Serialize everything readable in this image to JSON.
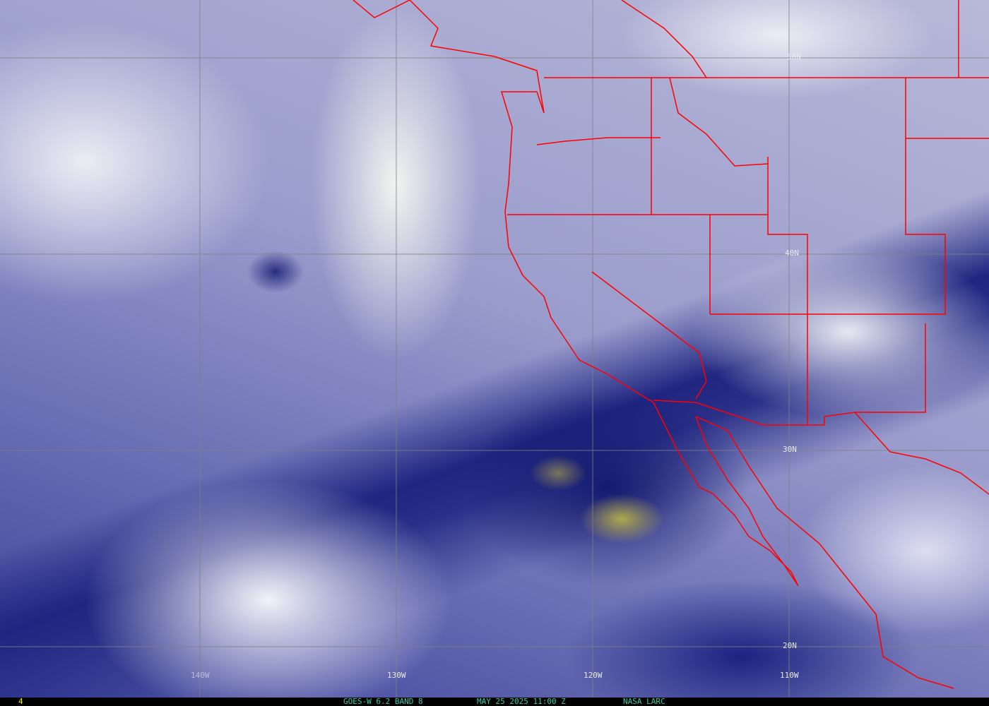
{
  "map": {
    "latitude_labels": [
      "50N",
      "40N",
      "30N",
      "20N"
    ],
    "longitude_labels": [
      "140W",
      "130W",
      "120W",
      "110W"
    ],
    "colors": {
      "borders": "#ff0000",
      "grid": "#808080",
      "caption": "#30d0b0",
      "frame_number": "#f0f000"
    }
  },
  "caption": {
    "frame_number": "4",
    "satellite": "GOES-W 6.2 BAND 8",
    "datetime": "MAY 25 2025 11:00 Z",
    "source": "NASA LARC"
  }
}
